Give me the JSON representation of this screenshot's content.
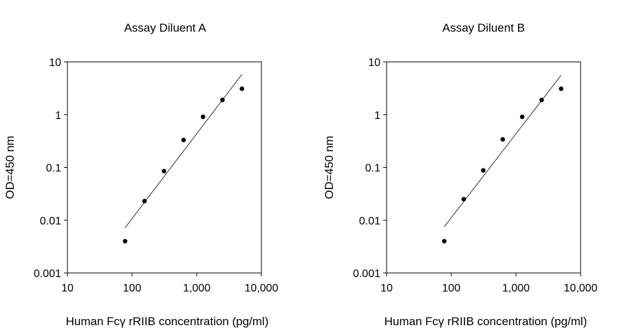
{
  "chart_data": [
    {
      "type": "scatter",
      "title": "Assay Diluent A",
      "xlabel": "Human Fcγ rRIIB concentration (pg/ml)",
      "ylabel": "OD=450 nm",
      "xscale": "log",
      "yscale": "log",
      "xlim": [
        10,
        10000
      ],
      "ylim": [
        0.001,
        10
      ],
      "xticks": [
        "10",
        "100",
        "1,000",
        "10,000"
      ],
      "yticks": [
        "0.001",
        "0.01",
        "0.1",
        "1",
        "10"
      ],
      "points": [
        {
          "x": 78,
          "y": 0.004
        },
        {
          "x": 156,
          "y": 0.023
        },
        {
          "x": 312,
          "y": 0.085
        },
        {
          "x": 625,
          "y": 0.33
        },
        {
          "x": 1250,
          "y": 0.91
        },
        {
          "x": 2500,
          "y": 1.9
        },
        {
          "x": 5000,
          "y": 3.1
        }
      ],
      "fit_line": [
        {
          "x": 78,
          "y": 0.0072
        },
        {
          "x": 5000,
          "y": 5.8
        }
      ],
      "grid": false,
      "legend": "none"
    },
    {
      "type": "scatter",
      "title": "Assay Diluent B",
      "xlabel": "Human Fcγ rRIIB concentration (pg/ml)",
      "ylabel": "OD=450 nm",
      "xscale": "log",
      "yscale": "log",
      "xlim": [
        10,
        10000
      ],
      "ylim": [
        0.001,
        10
      ],
      "xticks": [
        "10",
        "100",
        "1,000",
        "10,000"
      ],
      "yticks": [
        "0.001",
        "0.01",
        "0.1",
        "1",
        "10"
      ],
      "points": [
        {
          "x": 78,
          "y": 0.004
        },
        {
          "x": 156,
          "y": 0.025
        },
        {
          "x": 312,
          "y": 0.088
        },
        {
          "x": 625,
          "y": 0.34
        },
        {
          "x": 1250,
          "y": 0.91
        },
        {
          "x": 2500,
          "y": 1.9
        },
        {
          "x": 5000,
          "y": 3.1
        }
      ],
      "fit_line": [
        {
          "x": 78,
          "y": 0.0075
        },
        {
          "x": 5000,
          "y": 5.6
        }
      ],
      "grid": false,
      "legend": "none"
    }
  ]
}
